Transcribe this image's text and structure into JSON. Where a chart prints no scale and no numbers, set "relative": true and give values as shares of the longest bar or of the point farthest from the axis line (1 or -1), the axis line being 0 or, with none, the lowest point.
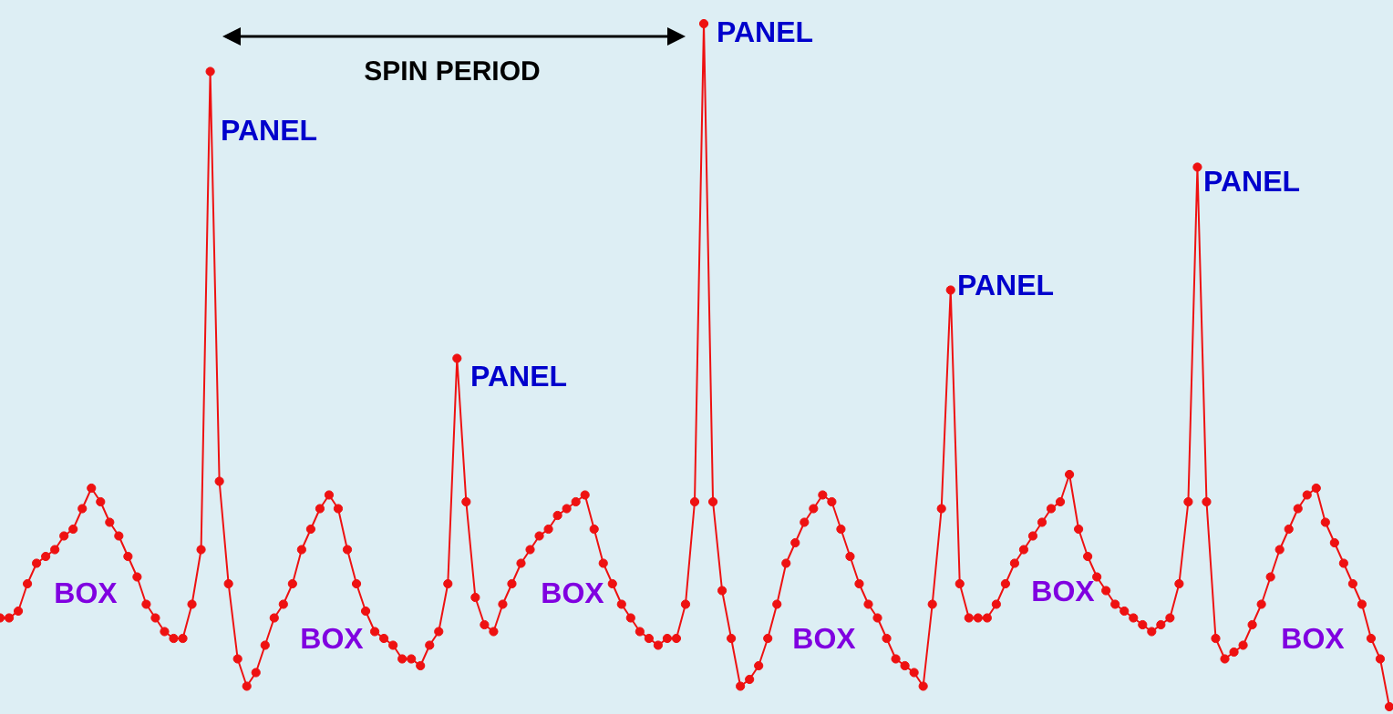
{
  "chart_data": {
    "type": "line",
    "relative": true,
    "marker": "circle",
    "line_style": "solid",
    "categories": [
      null,
      null,
      null,
      null,
      null,
      null,
      null,
      null,
      null,
      null,
      null,
      null,
      null,
      null,
      null,
      null,
      null,
      null,
      null,
      null,
      null,
      null,
      null,
      null,
      null,
      null,
      null,
      null,
      null,
      null,
      null,
      null,
      null,
      null,
      null,
      null,
      null,
      null,
      null,
      null,
      null,
      null,
      null,
      null,
      null,
      null,
      null,
      null,
      null,
      null,
      null,
      null,
      null,
      null,
      null,
      null,
      null,
      null,
      null,
      null,
      null,
      null,
      null,
      null,
      null,
      null,
      null,
      null,
      null,
      null,
      null,
      null,
      null,
      null,
      null,
      null,
      null,
      null,
      null,
      null,
      null,
      null,
      null,
      null,
      null,
      null,
      null,
      null,
      null,
      null,
      null,
      null,
      null,
      null,
      null,
      null,
      null,
      null,
      null,
      null,
      null,
      null,
      null,
      null,
      null,
      null,
      null,
      null,
      null,
      null,
      null,
      null,
      null,
      null,
      null,
      null,
      null,
      null,
      null,
      null,
      null,
      null,
      null,
      null,
      null,
      null,
      null,
      null,
      null,
      null,
      null,
      null,
      null,
      null,
      null,
      null,
      null,
      null,
      null,
      null,
      null,
      null,
      null,
      null,
      null,
      null,
      null,
      null,
      null,
      null,
      null,
      null,
      null
    ],
    "series": [
      {
        "color": "#ee1111",
        "values": [
          0.13,
          0.13,
          0.14,
          0.18,
          0.21,
          0.22,
          0.23,
          0.25,
          0.26,
          0.29,
          0.32,
          0.3,
          0.27,
          0.25,
          0.22,
          0.19,
          0.15,
          0.13,
          0.11,
          0.1,
          0.1,
          0.15,
          0.23,
          0.93,
          0.33,
          0.18,
          0.07,
          0.03,
          0.05,
          0.09,
          0.13,
          0.15,
          0.18,
          0.23,
          0.26,
          0.29,
          0.31,
          0.29,
          0.23,
          0.18,
          0.14,
          0.11,
          0.1,
          0.09,
          0.07,
          0.07,
          0.06,
          0.09,
          0.11,
          0.18,
          0.51,
          0.3,
          0.16,
          0.12,
          0.11,
          0.15,
          0.18,
          0.21,
          0.23,
          0.25,
          0.26,
          0.28,
          0.29,
          0.3,
          0.31,
          0.26,
          0.21,
          0.18,
          0.15,
          0.13,
          0.11,
          0.1,
          0.09,
          0.1,
          0.1,
          0.15,
          0.3,
          1,
          0.3,
          0.17,
          0.1,
          0.03,
          0.04,
          0.06,
          0.1,
          0.15,
          0.21,
          0.24,
          0.27,
          0.29,
          0.31,
          0.3,
          0.26,
          0.22,
          0.18,
          0.15,
          0.13,
          0.1,
          0.07,
          0.06,
          0.05,
          0.03,
          0.15,
          0.29,
          0.61,
          0.18,
          0.13,
          0.13,
          0.13,
          0.15,
          0.18,
          0.21,
          0.23,
          0.25,
          0.27,
          0.29,
          0.3,
          0.34,
          0.26,
          0.22,
          0.19,
          0.17,
          0.15,
          0.14,
          0.13,
          0.12,
          0.11,
          0.12,
          0.13,
          0.18,
          0.3,
          0.79,
          0.3,
          0.1,
          0.07,
          0.08,
          0.09,
          0.12,
          0.15,
          0.19,
          0.23,
          0.26,
          0.29,
          0.31,
          0.32,
          0.27,
          0.24,
          0.21,
          0.18,
          0.15,
          0.1,
          0.07,
          0
        ]
      }
    ],
    "annotations": [
      "SPIN PERIOD",
      "BOX",
      "PANEL",
      "BOX",
      "PANEL",
      "BOX",
      "PANEL",
      "BOX",
      "PANEL",
      "BOX",
      "PANEL",
      "BOX"
    ]
  }
}
